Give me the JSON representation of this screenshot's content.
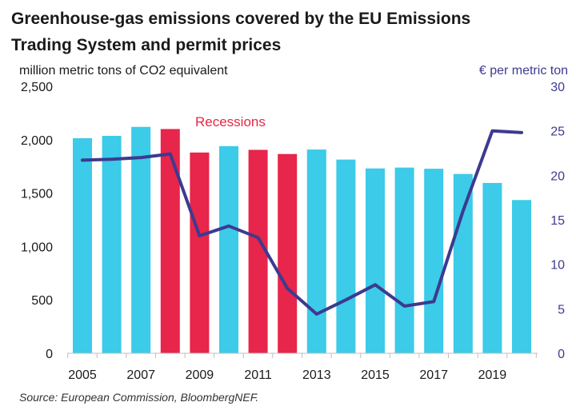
{
  "title_line1": "Greenhouse-gas emissions covered by the EU Emissions",
  "title_line2": "Trading System and permit prices",
  "left_unit": "million metric tons of CO2 equivalent",
  "right_unit": "€ per metric ton",
  "recessions_label": "Recessions",
  "source": "Source: European Commission, BloombergNEF.",
  "colors": {
    "bar_normal": "#3ccbe8",
    "bar_recession": "#e8254a",
    "price_line": "#3d3a8f",
    "right_axis_text": "#3d3a8f",
    "recession_text": "#e8254a"
  },
  "chart_data": {
    "type": "bar+line",
    "x": [
      2005,
      2006,
      2007,
      2008,
      2009,
      2010,
      2011,
      2012,
      2013,
      2014,
      2015,
      2016,
      2017,
      2018,
      2019,
      2020
    ],
    "x_tick_labels": [
      "2005",
      "2007",
      "2009",
      "2011",
      "2013",
      "2015",
      "2017",
      "2019"
    ],
    "emissions": [
      2014,
      2036,
      2120,
      2100,
      1880,
      1940,
      1905,
      1866,
      1908,
      1814,
      1731,
      1739,
      1728,
      1679,
      1595,
      1435
    ],
    "recession_years": [
      2008,
      2009,
      2011,
      2012
    ],
    "price": [
      21.7,
      21.8,
      22.0,
      22.4,
      13.2,
      14.3,
      13.0,
      7.3,
      4.4,
      6.0,
      7.7,
      5.3,
      5.8,
      16.0,
      25.0,
      24.8
    ],
    "left_axis": {
      "min": 0,
      "max": 2500,
      "ticks": [
        "0",
        "500",
        "1,000",
        "1,500",
        "2,000",
        "2,500"
      ]
    },
    "right_axis": {
      "min": 0,
      "max": 30,
      "ticks": [
        "0",
        "5",
        "10",
        "15",
        "20",
        "25",
        "30"
      ]
    }
  }
}
